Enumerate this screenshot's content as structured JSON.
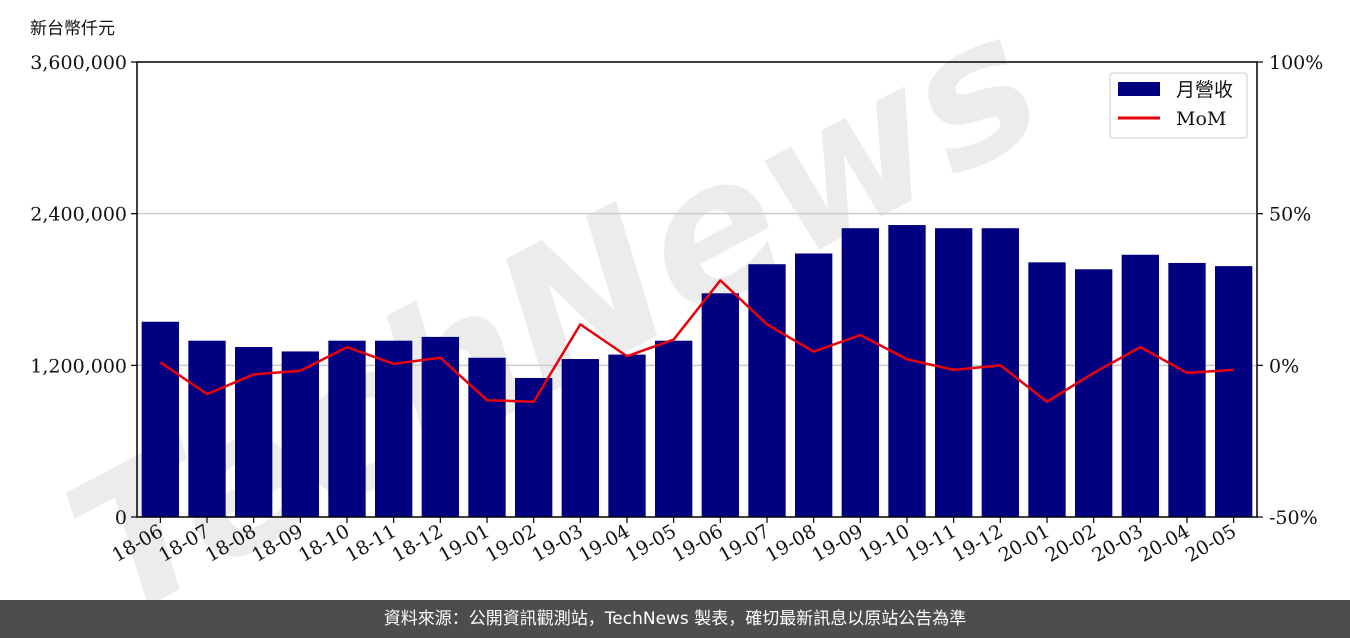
{
  "unit_label": "新台幣仟元",
  "watermark": "TechNews",
  "footer_text": "資料來源：公開資訊觀測站，TechNews 製表，確切最新訊息以原站公告為準",
  "colors": {
    "bar": "#000080",
    "line": "#e8000b",
    "grid": "#cccccc",
    "footer_bg": "#4d4d4d",
    "watermark": "#e8e8e8",
    "watermark_accent": "#f6dede"
  },
  "chart_data": {
    "type": "bar",
    "categories": [
      "18-06",
      "18-07",
      "18-08",
      "18-09",
      "18-10",
      "18-11",
      "18-12",
      "19-01",
      "19-02",
      "19-03",
      "19-04",
      "19-05",
      "19-06",
      "19-07",
      "19-08",
      "19-09",
      "19-10",
      "19-11",
      "19-12",
      "20-01",
      "20-02",
      "20-03",
      "20-04",
      "20-05"
    ],
    "series": [
      {
        "name": "月營收",
        "type": "bar",
        "axis": "left",
        "values": [
          1545000,
          1395000,
          1345000,
          1310000,
          1395000,
          1395000,
          1425000,
          1260000,
          1100000,
          1250000,
          1285000,
          1395000,
          1770000,
          2000000,
          2085000,
          2285000,
          2310000,
          2285000,
          2285000,
          2015000,
          1960000,
          2075000,
          2010000,
          1985000
        ]
      },
      {
        "name": "MoM",
        "type": "line",
        "axis": "right",
        "values": [
          1,
          -9.5,
          -3,
          -1.8,
          6,
          0.5,
          2.5,
          -11.5,
          -12,
          13.5,
          3,
          8.5,
          28,
          13.5,
          4.5,
          10,
          2,
          -1.5,
          0,
          -12,
          -2.5,
          6,
          -2.5,
          -1.5
        ]
      }
    ],
    "y_left": {
      "ylim": [
        0,
        3600000
      ],
      "ticks": [
        "0",
        "1,200,000",
        "2,400,000",
        "3,600,000"
      ],
      "tick_values": [
        0,
        1200000,
        2400000,
        3600000
      ]
    },
    "y_right": {
      "ylim": [
        -50,
        100
      ],
      "ticks": [
        "-50%",
        "0%",
        "50%",
        "100%"
      ],
      "tick_values": [
        -50,
        0,
        50,
        100
      ]
    },
    "grid": "horizontal",
    "legend_placement": "top-right"
  }
}
